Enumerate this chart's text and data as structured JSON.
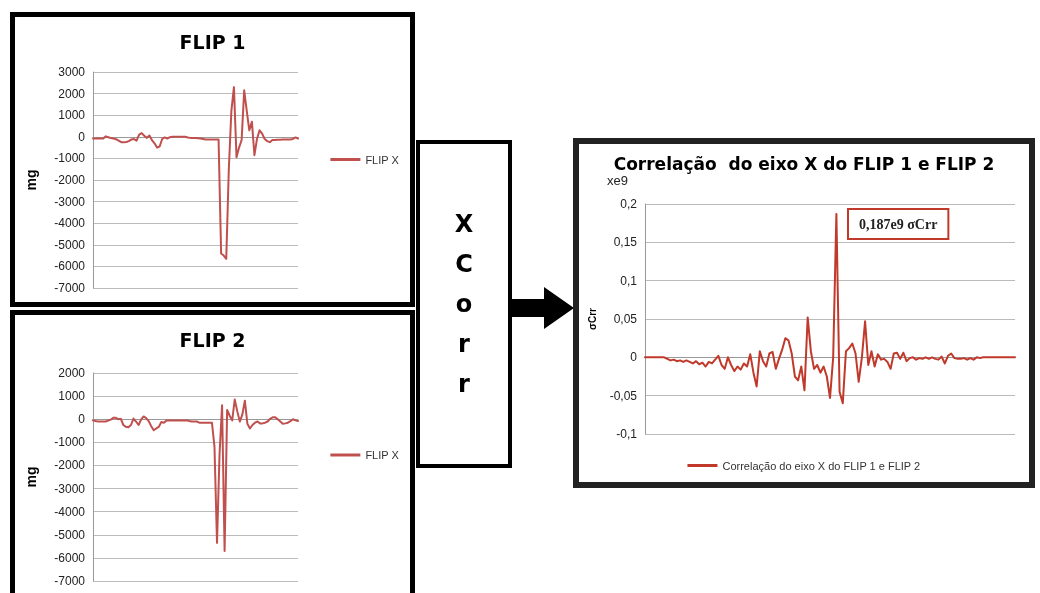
{
  "chart_data": [
    {
      "type": "line",
      "title": "FLIP 1",
      "ylabel": "mg",
      "categories": [
        null,
        null,
        null,
        null,
        null,
        null,
        null,
        null,
        null,
        null,
        null,
        null,
        null,
        null,
        null,
        null,
        null,
        null,
        null,
        null,
        null,
        null,
        null,
        null,
        null,
        null,
        null,
        null,
        null,
        null,
        null,
        null,
        null,
        null,
        null,
        null,
        null,
        null,
        null,
        null,
        null,
        null,
        null,
        null,
        null,
        null,
        null,
        null,
        null,
        null,
        null,
        null,
        null,
        null,
        null,
        null,
        null,
        null,
        null,
        null,
        null,
        null,
        null,
        null,
        null,
        null,
        null,
        null,
        null,
        null,
        null,
        null,
        null,
        null,
        null,
        null,
        null,
        null,
        null,
        null,
        null
      ],
      "series": [
        {
          "name": "FLIP X",
          "color": "#c0504d",
          "values": [
            -80,
            -80,
            -80,
            -80,
            -80,
            20,
            -20,
            -60,
            -80,
            -110,
            -180,
            -250,
            -250,
            -240,
            -200,
            -120,
            -100,
            -180,
            100,
            170,
            50,
            -50,
            60,
            -150,
            -300,
            -500,
            -450,
            -100,
            -30,
            -80,
            -20,
            0,
            0,
            0,
            0,
            0,
            0,
            -30,
            -50,
            -50,
            -60,
            -70,
            -80,
            -100,
            -120,
            -120,
            -120,
            -120,
            -120,
            -120,
            -5400,
            -5500,
            -5650,
            -1500,
            1200,
            2300,
            -950,
            -500,
            -150,
            2150,
            1200,
            300,
            700,
            -850,
            -100,
            300,
            150,
            -100,
            -200,
            -250,
            -150,
            -150,
            -140,
            -140,
            -130,
            -130,
            -120,
            -120,
            -100,
            -30,
            -80
          ]
        }
      ],
      "ylim": [
        -7000,
        3000
      ],
      "yticks": [
        -7000,
        -6000,
        -5000,
        -4000,
        -3000,
        -2000,
        -1000,
        0,
        1000,
        2000,
        3000
      ],
      "grid": "y",
      "legend": "right",
      "tick_labels": "y"
    },
    {
      "type": "line",
      "title": "FLIP 2",
      "ylabel": "mg",
      "categories": [
        null,
        null,
        null,
        null,
        null,
        null,
        null,
        null,
        null,
        null,
        null,
        null,
        null,
        null,
        null,
        null,
        null,
        null,
        null,
        null,
        null,
        null,
        null,
        null,
        null,
        null,
        null,
        null,
        null,
        null,
        null,
        null,
        null,
        null,
        null,
        null,
        null,
        null,
        null,
        null,
        null,
        null,
        null,
        null,
        null,
        null,
        null,
        null,
        null,
        null,
        null,
        null,
        null,
        null,
        null,
        null,
        null,
        null,
        null,
        null,
        null,
        null,
        null,
        null,
        null,
        null,
        null,
        null,
        null,
        null,
        null,
        null,
        null,
        null,
        null,
        null,
        null,
        null,
        null,
        null,
        null,
        null
      ],
      "series": [
        {
          "name": "FLIP X",
          "color": "#c0504d",
          "values": [
            -50,
            -80,
            -100,
            -100,
            -100,
            -100,
            -60,
            -20,
            60,
            60,
            0,
            20,
            -250,
            -330,
            -350,
            -250,
            30,
            -100,
            -250,
            -20,
            120,
            50,
            -80,
            -300,
            -480,
            -400,
            -330,
            -120,
            -150,
            -60,
            -50,
            -50,
            -50,
            -50,
            -50,
            -50,
            -50,
            -50,
            -80,
            -100,
            -100,
            -100,
            -150,
            -150,
            -150,
            -150,
            -150,
            -150,
            -1200,
            -5350,
            -1500,
            600,
            -5700,
            400,
            150,
            -50,
            850,
            350,
            -100,
            200,
            800,
            -200,
            -400,
            -250,
            -150,
            -100,
            -180,
            -180,
            -150,
            -100,
            20,
            80,
            80,
            0,
            -100,
            -200,
            -180,
            -150,
            -80,
            0,
            -50,
            -80
          ]
        }
      ],
      "ylim": [
        -7000,
        2000
      ],
      "yticks": [
        -7000,
        -6000,
        -5000,
        -4000,
        -3000,
        -2000,
        -1000,
        0,
        1000,
        2000
      ],
      "grid": "y",
      "legend": "right",
      "tick_labels": "y"
    },
    {
      "type": "other",
      "title": "XCorr"
    },
    {
      "type": "line",
      "title": "Correlação  do eixo X do FLIP 1 e FLIP 2",
      "ylabel": "σCrr",
      "annotations": [
        "xe9",
        "0,187e9 σCrr"
      ],
      "categories": [
        null,
        null,
        null,
        null,
        null,
        null,
        null,
        null,
        null,
        null,
        null,
        null,
        null,
        null,
        null,
        null,
        null,
        null,
        null,
        null,
        null,
        null,
        null,
        null,
        null,
        null,
        null,
        null,
        null,
        null,
        null,
        null,
        null,
        null,
        null,
        null,
        null,
        null,
        null,
        null,
        null,
        null,
        null,
        null,
        null,
        null,
        null,
        null,
        null,
        null,
        null,
        null,
        null,
        null,
        null,
        null,
        null,
        null,
        null,
        null,
        null,
        null,
        null,
        null,
        null,
        null,
        null,
        null,
        null,
        null,
        null,
        null,
        null,
        null,
        null,
        null,
        null,
        null,
        null,
        null,
        null,
        null,
        null,
        null,
        null,
        null,
        null,
        null,
        null,
        null,
        null,
        null,
        null,
        null,
        null,
        null,
        null,
        null,
        null,
        null,
        null,
        null,
        null,
        null,
        null,
        null,
        null,
        null,
        null,
        null,
        null,
        null,
        null,
        null,
        null,
        null,
        null
      ],
      "series": [
        {
          "name": "Correlação do eixo X do FLIP 1 e FLIP 2",
          "color": "#c0392b",
          "values": [
            0,
            0,
            0,
            0,
            0,
            0,
            0,
            -0.002,
            -0.004,
            -0.003,
            -0.005,
            -0.004,
            -0.006,
            -0.004,
            -0.006,
            -0.008,
            -0.005,
            -0.009,
            -0.007,
            -0.012,
            -0.006,
            -0.008,
            -0.003,
            0.002,
            -0.01,
            -0.015,
            0,
            -0.01,
            -0.018,
            -0.012,
            -0.016,
            -0.008,
            -0.012,
            0.004,
            -0.02,
            -0.038,
            0.008,
            -0.005,
            -0.012,
            0.005,
            0.007,
            -0.015,
            -0.002,
            0.01,
            0.025,
            0.022,
            0.005,
            -0.025,
            -0.03,
            -0.012,
            -0.043,
            0.052,
            0.008,
            -0.015,
            -0.01,
            -0.02,
            -0.012,
            -0.025,
            -0.053,
            0,
            0.187,
            -0.045,
            -0.06,
            0.008,
            0.012,
            0.018,
            0.005,
            -0.032,
            0,
            0.047,
            -0.01,
            0.008,
            -0.012,
            0.004,
            -0.003,
            -0.002,
            -0.006,
            -0.015,
            0.005,
            0.006,
            -0.002,
            0.006,
            -0.005,
            -0.001,
            0,
            -0.003,
            -0.001,
            -0.002,
            0,
            -0.002,
            0,
            -0.002,
            -0.003,
            0.001,
            -0.008,
            0.002,
            0.005,
            -0.001,
            -0.002,
            -0.002,
            -0.001,
            -0.003,
            -0.001,
            -0.003,
            0,
            -0.001,
            0,
            0,
            0,
            0,
            0,
            0,
            0,
            0,
            0,
            0,
            0
          ]
        }
      ],
      "ylim": [
        -0.1,
        0.2
      ],
      "yticks": [
        {
          "value": -0.1,
          "label": "-0,1"
        },
        {
          "value": -0.05,
          "label": "-0,05"
        },
        {
          "value": 0,
          "label": "0"
        },
        {
          "value": 0.05,
          "label": "0,05"
        },
        {
          "value": 0.1,
          "label": "0,1"
        },
        {
          "value": 0.15,
          "label": "0,15"
        },
        {
          "value": 0.2,
          "label": "0,2"
        }
      ],
      "grid": "y",
      "legend": "bottom",
      "tick_labels": "y"
    }
  ]
}
